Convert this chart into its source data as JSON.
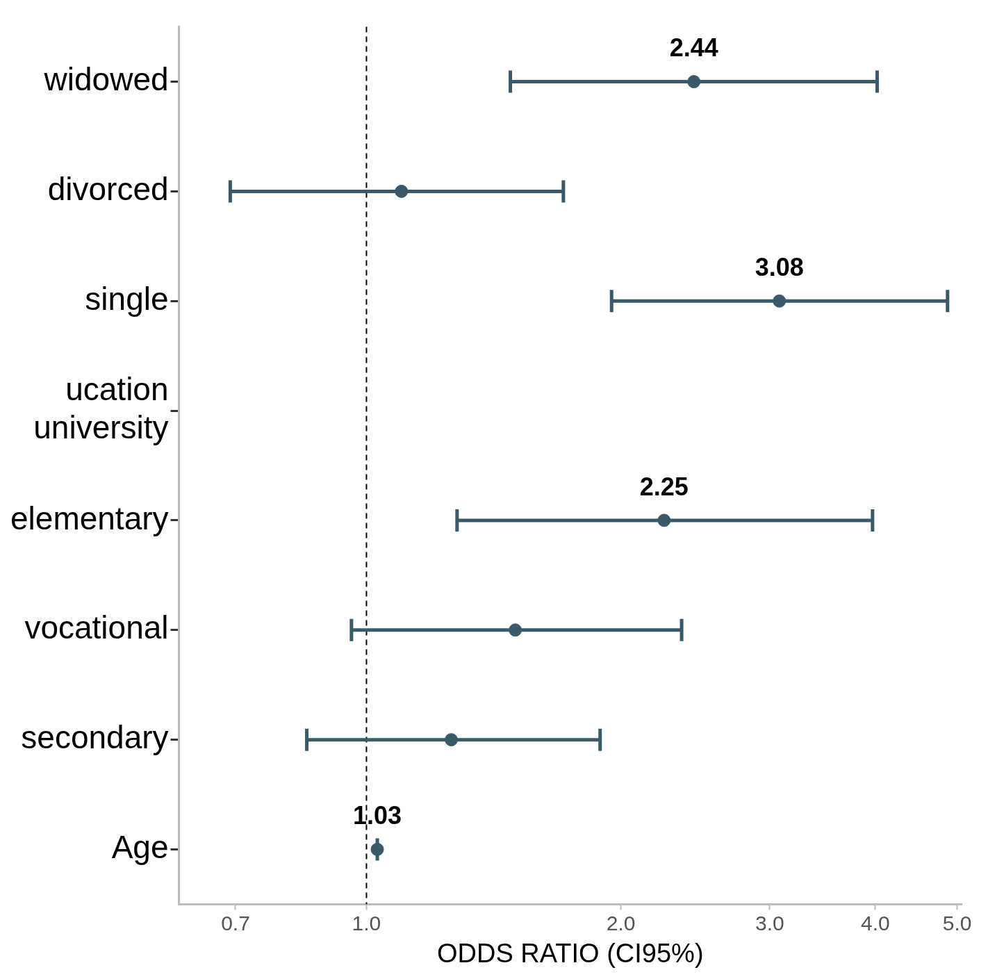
{
  "chart_data": {
    "type": "scatter",
    "orientation": "horizontal",
    "xlabel": "ODDS RATIO (CI95%)",
    "categories": [
      "widowed",
      "divorced",
      "single",
      "ucation\nuniversity",
      "elementary",
      "vocational",
      "secondary",
      "Age"
    ],
    "series": [
      {
        "color": "#3a5a6a",
        "values": [
          2.44,
          1.1,
          3.08,
          null,
          2.25,
          1.5,
          1.26,
          1.03
        ],
        "errors": [
          [
            1.48,
            4.02
          ],
          [
            0.69,
            1.71
          ],
          [
            1.95,
            4.87
          ],
          null,
          [
            1.28,
            3.97
          ],
          [
            0.96,
            2.36
          ],
          [
            0.85,
            1.89
          ],
          [
            1.03,
            1.03
          ]
        ],
        "value_labels": [
          "2.44",
          null,
          "3.08",
          null,
          "2.25",
          null,
          null,
          "1.03"
        ]
      }
    ],
    "log": "x",
    "xlim": [
      0.6,
      5.06
    ],
    "xticks": [
      0.7,
      {
        "value": 1,
        "label": "1.0"
      },
      {
        "value": 2,
        "label": "2.0"
      },
      {
        "value": 3,
        "label": "3.0"
      },
      {
        "value": 4,
        "label": "4.0"
      },
      {
        "value": 5,
        "label": "5.0"
      }
    ],
    "ref_lines": [
      {
        "axis": "x",
        "value": 1,
        "color": "#000000",
        "line_style": "dashed"
      }
    ],
    "grid": false,
    "marker": "circle",
    "legend": false
  }
}
